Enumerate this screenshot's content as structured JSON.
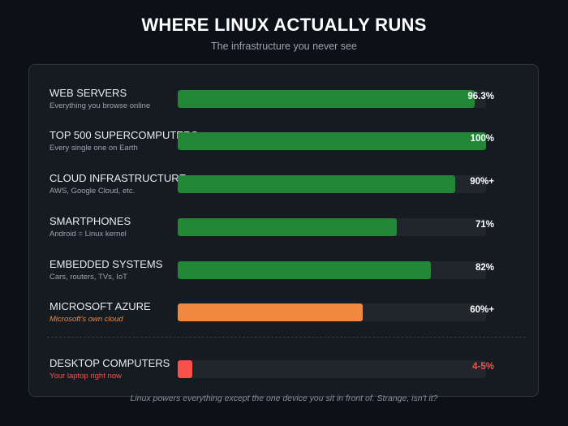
{
  "header": {
    "title": "WHERE LINUX ACTUALLY RUNS",
    "subtitle": "The infrastructure you never see"
  },
  "footer": {
    "note": "Linux powers everything except the one device you sit in front of. Strange, isn't it?"
  },
  "colors": {
    "green": "#238636",
    "orange": "#f0883e",
    "red": "#f85149"
  },
  "chart_data": {
    "type": "bar",
    "orientation": "horizontal",
    "xlim": [
      0,
      100
    ],
    "unit": "%",
    "rows": [
      {
        "label": "WEB SERVERS",
        "sublabel": "Everything you browse online",
        "value": 96.3,
        "value_label": "96.3%",
        "color": "#238636"
      },
      {
        "label": "TOP 500 SUPERCOMPUTERS",
        "sublabel": "Every single one on Earth",
        "value": 100,
        "value_label": "100%",
        "color": "#238636"
      },
      {
        "label": "CLOUD INFRASTRUCTURE",
        "sublabel": "AWS, Google Cloud, etc.",
        "value": 90,
        "value_label": "90%+",
        "color": "#238636"
      },
      {
        "label": "SMARTPHONES",
        "sublabel": "Android = Linux kernel",
        "value": 71,
        "value_label": "71%",
        "color": "#238636"
      },
      {
        "label": "EMBEDDED SYSTEMS",
        "sublabel": "Cars, routers, TVs, IoT",
        "value": 82,
        "value_label": "82%",
        "color": "#238636"
      },
      {
        "label": "MICROSOFT AZURE",
        "sublabel": "Microsoft's own cloud",
        "value": 60,
        "value_label": "60%+",
        "color": "#f0883e"
      },
      {
        "label": "DESKTOP COMPUTERS",
        "sublabel": "Your laptop right now",
        "value": 4.5,
        "value_label": "4-5%",
        "color": "#f85149"
      }
    ]
  }
}
